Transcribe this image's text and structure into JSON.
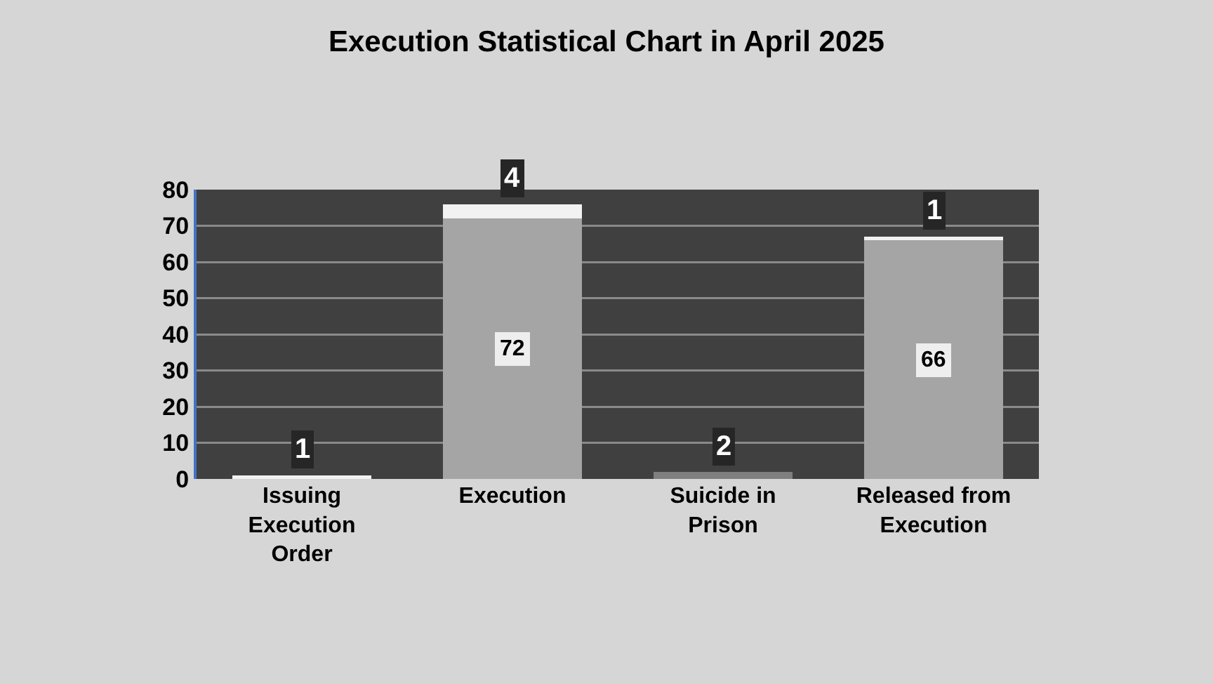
{
  "chart_data": {
    "type": "bar",
    "title": "Execution Statistical Chart in April 2025",
    "categories": [
      "Issuing Execution Order",
      "Execution",
      "Suicide in Prison",
      "Released from Execution"
    ],
    "series": [
      {
        "colors": [
          "#a5a5a5",
          "#a5a5a5",
          "#7f7f7f",
          "#a5a5a5"
        ],
        "values": [
          null,
          72,
          2,
          66
        ]
      },
      {
        "color": "#f2f2f2",
        "values": [
          1,
          4,
          null,
          1
        ]
      }
    ],
    "stacked": true,
    "ylim": [
      0,
      80
    ],
    "yticks": [
      0,
      10,
      20,
      30,
      40,
      50,
      60,
      70,
      80
    ],
    "grid": "y",
    "data_labels": true
  }
}
